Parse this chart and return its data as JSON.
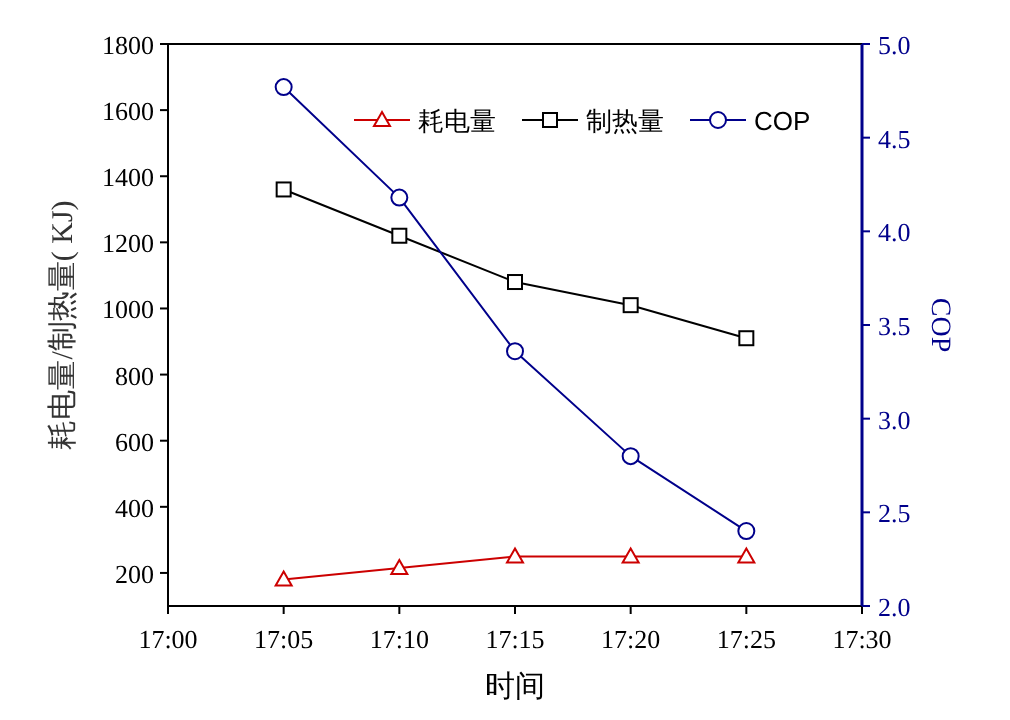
{
  "chart_data": {
    "type": "line",
    "xlabel": "时间",
    "ylabel": "耗电量/制热量( KJ)",
    "y2label": "COP",
    "x": [
      17.083333,
      17.166667,
      17.25,
      17.333333,
      17.416667
    ],
    "xlim": [
      17.0,
      17.5
    ],
    "xticks": [
      {
        "value": 17.0,
        "label": "17:00"
      },
      {
        "value": 17.083333,
        "label": "17:05"
      },
      {
        "value": 17.166667,
        "label": "17:10"
      },
      {
        "value": 17.25,
        "label": "17:15"
      },
      {
        "value": 17.333333,
        "label": "17:20"
      },
      {
        "value": 17.416667,
        "label": "17:25"
      },
      {
        "value": 17.5,
        "label": "17:30"
      }
    ],
    "ylim": [
      100,
      1800
    ],
    "yticks": [
      200,
      400,
      600,
      800,
      1000,
      1200,
      1400,
      1600,
      1800
    ],
    "y2lim": [
      2.0,
      5.0
    ],
    "y2ticks": [
      {
        "value": 2.0,
        "label": "2.0"
      },
      {
        "value": 2.5,
        "label": "2.5"
      },
      {
        "value": 3.0,
        "label": "3.0"
      },
      {
        "value": 3.5,
        "label": "3.5"
      },
      {
        "value": 4.0,
        "label": "4.0"
      },
      {
        "value": 4.5,
        "label": "4.5"
      },
      {
        "value": 5.0,
        "label": "5.0"
      }
    ],
    "series": [
      {
        "name": "耗电量",
        "color": "#cc0000",
        "marker": "triangle",
        "values": [
          180,
          215,
          250,
          250,
          250
        ]
      },
      {
        "name": "制热量",
        "color": "#000000",
        "marker": "square",
        "values": [
          1360,
          1220,
          1080,
          1010,
          910
        ]
      },
      {
        "name": "COP",
        "color": "#00008b",
        "marker": "circle",
        "axis": "y2",
        "values": [
          4.77,
          4.18,
          3.36,
          2.8,
          2.4
        ]
      }
    ],
    "legend": "top right",
    "grid": false,
    "line_style": "solid"
  }
}
